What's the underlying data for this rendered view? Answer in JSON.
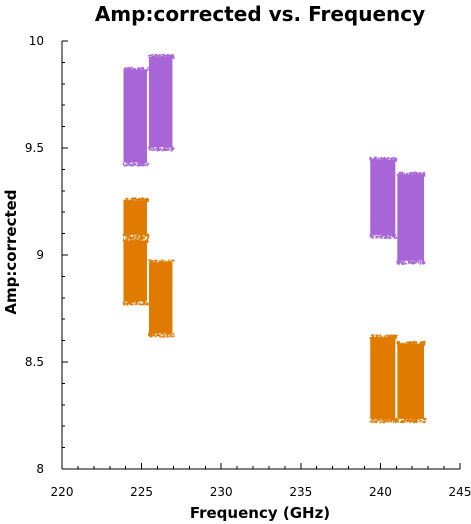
{
  "chart_data": {
    "type": "scatter",
    "title": "Amp:corrected vs. Frequency",
    "xlabel": "Frequency (GHz)",
    "ylabel": "Amp:corrected",
    "xlim": [
      220,
      245
    ],
    "ylim": [
      8,
      10
    ],
    "x_ticks": [
      "220",
      "225",
      "230",
      "235",
      "240",
      "245"
    ],
    "y_ticks": [
      "8",
      "8.5",
      "9",
      "9.5",
      "10"
    ],
    "colors": {
      "purple": "#a865d8",
      "orange": "#e07b00"
    },
    "series": [
      {
        "color": "#a865d8",
        "clusters": [
          {
            "x_range": [
              223.8,
              225.4
            ],
            "y_range": [
              9.42,
              9.88
            ]
          },
          {
            "x_range": [
              225.4,
              227.0
            ],
            "y_range": [
              9.49,
              9.94
            ]
          },
          {
            "x_range": [
              239.3,
              241.0
            ],
            "y_range": [
              9.08,
              9.46
            ]
          },
          {
            "x_range": [
              241.0,
              242.8
            ],
            "y_range": [
              8.96,
              9.39
            ]
          }
        ]
      },
      {
        "color": "#e07b00",
        "clusters": [
          {
            "x_range": [
              223.8,
              225.4
            ],
            "y_range": [
              9.08,
              9.27
            ]
          },
          {
            "x_range": [
              223.8,
              225.4
            ],
            "y_range": [
              8.77,
              9.08
            ]
          },
          {
            "x_range": [
              225.4,
              227.0
            ],
            "y_range": [
              8.62,
              8.98
            ]
          },
          {
            "x_range": [
              239.3,
              241.0
            ],
            "y_range": [
              8.22,
              8.63
            ]
          },
          {
            "x_range": [
              241.0,
              242.8
            ],
            "y_range": [
              8.22,
              8.6
            ]
          }
        ]
      }
    ]
  }
}
